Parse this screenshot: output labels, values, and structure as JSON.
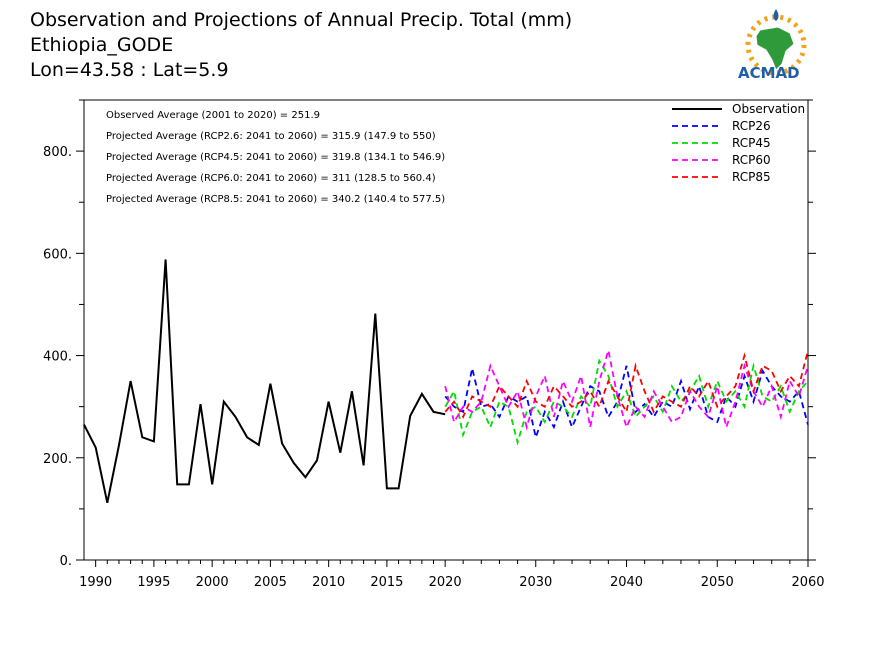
{
  "header": {
    "title": "Observation and Projections of Annual Precip. Total (mm)",
    "station": "Ethiopia_GODE",
    "coords": "Lon=43.58 : Lat=5.9"
  },
  "logo": {
    "text": "ACMAD"
  },
  "annotations": [
    "Observed Average (2001 to 2020) = 251.9",
    "Projected Average (RCP2.6: 2041 to 2060) = 315.9 (147.9 to 550)",
    "Projected Average (RCP4.5: 2041 to 2060) = 319.8 (134.1 to 546.9)",
    "Projected Average (RCP6.0: 2041 to 2060) = 311 (128.5 to 560.4)",
    "Projected Average (RCP8.5: 2041 to 2060) = 340.2 (140.4 to 577.5)"
  ],
  "chart_data": {
    "type": "line",
    "xlim": [
      1989,
      2060
    ],
    "ylim": [
      0,
      900
    ],
    "x_tick_labels": [
      "1990",
      "1995",
      "2000",
      "2005",
      "2010",
      "2015",
      "2020",
      "2030",
      "2040",
      "2050",
      "2060"
    ],
    "x_tick_values": [
      1990,
      1995,
      2000,
      2005,
      2010,
      2015,
      2020,
      2030,
      2040,
      2050,
      2060
    ],
    "y_tick_labels": [
      "0.",
      "200.",
      "400.",
      "600.",
      "800."
    ],
    "y_tick_values": [
      0,
      200,
      400,
      600,
      800
    ],
    "legend_position": "top-right",
    "series": [
      {
        "name": "Observation",
        "color": "#000000",
        "dash": "solid",
        "x": [
          1989,
          1990,
          1991,
          1992,
          1993,
          1994,
          1995,
          1996,
          1997,
          1998,
          1999,
          2000,
          2001,
          2002,
          2003,
          2004,
          2005,
          2006,
          2007,
          2008,
          2009,
          2010,
          2011,
          2012,
          2013,
          2014,
          2015,
          2016,
          2017,
          2018,
          2019,
          2020
        ],
        "values": [
          265,
          220,
          112,
          225,
          350,
          240,
          232,
          588,
          148,
          148,
          305,
          148,
          310,
          280,
          240,
          225,
          345,
          228,
          190,
          162,
          195,
          310,
          210,
          330,
          185,
          482,
          140,
          140,
          282,
          325,
          290,
          285
        ]
      },
      {
        "name": "RCP26",
        "color": "#0000ff",
        "dash": "dashed",
        "x": [
          2020,
          2021,
          2022,
          2023,
          2024,
          2025,
          2026,
          2027,
          2028,
          2029,
          2030,
          2031,
          2032,
          2033,
          2034,
          2035,
          2036,
          2037,
          2038,
          2039,
          2040,
          2041,
          2042,
          2043,
          2044,
          2045,
          2046,
          2047,
          2048,
          2049,
          2050,
          2051,
          2052,
          2053,
          2054,
          2055,
          2056,
          2057,
          2058,
          2059,
          2060
        ],
        "values": [
          320,
          300,
          290,
          375,
          300,
          305,
          280,
          320,
          310,
          320,
          240,
          290,
          260,
          310,
          260,
          300,
          340,
          330,
          280,
          310,
          380,
          290,
          305,
          280,
          310,
          300,
          350,
          295,
          340,
          280,
          270,
          320,
          300,
          360,
          310,
          370,
          340,
          320,
          310,
          330,
          265
        ]
      },
      {
        "name": "RCP45",
        "color": "#00dd00",
        "dash": "dashed",
        "x": [
          2020,
          2021,
          2022,
          2023,
          2024,
          2025,
          2026,
          2027,
          2028,
          2029,
          2030,
          2031,
          2032,
          2033,
          2034,
          2035,
          2036,
          2037,
          2038,
          2039,
          2040,
          2041,
          2042,
          2043,
          2044,
          2045,
          2046,
          2047,
          2048,
          2049,
          2050,
          2051,
          2052,
          2053,
          2054,
          2055,
          2056,
          2057,
          2058,
          2059,
          2060
        ],
        "values": [
          300,
          330,
          245,
          290,
          300,
          260,
          310,
          300,
          230,
          290,
          300,
          270,
          310,
          300,
          280,
          320,
          300,
          390,
          360,
          300,
          330,
          280,
          300,
          320,
          290,
          340,
          310,
          330,
          360,
          300,
          350,
          310,
          330,
          300,
          380,
          320,
          310,
          340,
          290,
          330,
          350
        ]
      },
      {
        "name": "RCP60",
        "color": "#ff00ff",
        "dash": "dashed",
        "x": [
          2020,
          2021,
          2022,
          2023,
          2024,
          2025,
          2026,
          2027,
          2028,
          2029,
          2030,
          2031,
          2032,
          2033,
          2034,
          2035,
          2036,
          2037,
          2038,
          2039,
          2040,
          2041,
          2042,
          2043,
          2044,
          2045,
          2046,
          2047,
          2048,
          2049,
          2050,
          2051,
          2052,
          2053,
          2054,
          2055,
          2056,
          2057,
          2058,
          2059,
          2060
        ],
        "values": [
          340,
          270,
          300,
          290,
          310,
          380,
          340,
          300,
          330,
          260,
          320,
          360,
          280,
          350,
          310,
          360,
          260,
          350,
          410,
          320,
          260,
          300,
          280,
          330,
          300,
          270,
          280,
          330,
          300,
          280,
          340,
          260,
          310,
          380,
          330,
          300,
          340,
          280,
          350,
          320,
          380
        ]
      },
      {
        "name": "RCP85",
        "color": "#ff0000",
        "dash": "dashed",
        "x": [
          2020,
          2021,
          2022,
          2023,
          2024,
          2025,
          2026,
          2027,
          2028,
          2029,
          2030,
          2031,
          2032,
          2033,
          2034,
          2035,
          2036,
          2037,
          2038,
          2039,
          2040,
          2041,
          2042,
          2043,
          2044,
          2045,
          2046,
          2047,
          2048,
          2049,
          2050,
          2051,
          2052,
          2053,
          2054,
          2055,
          2056,
          2057,
          2058,
          2059,
          2060
        ],
        "values": [
          290,
          310,
          280,
          320,
          310,
          300,
          340,
          320,
          300,
          350,
          310,
          300,
          340,
          320,
          300,
          310,
          330,
          300,
          350,
          320,
          290,
          380,
          330,
          290,
          320,
          310,
          300,
          340,
          320,
          350,
          300,
          320,
          340,
          400,
          330,
          380,
          370,
          330,
          360,
          340,
          410
        ]
      }
    ]
  }
}
